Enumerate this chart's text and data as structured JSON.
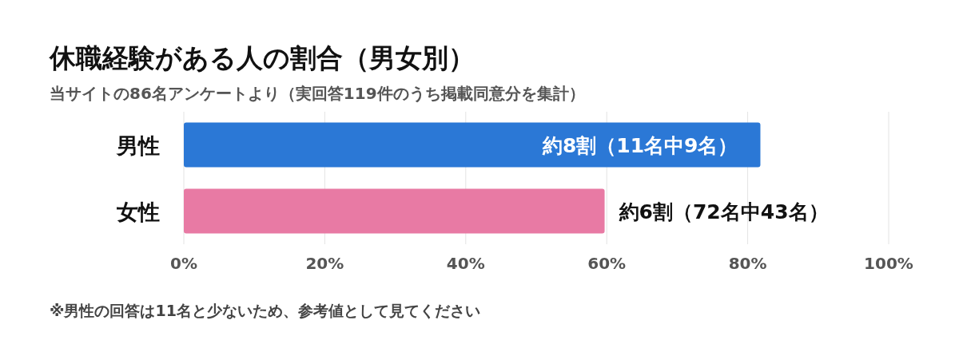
{
  "chart_data": {
    "type": "bar",
    "orientation": "horizontal",
    "title": "休職経験がある人の割合（男女別）",
    "subtitle": "当サイトの86名アンケートより（実回答119件のうち掲載同意分を集計）",
    "categories": [
      "男性",
      "女性"
    ],
    "values": [
      81.8,
      59.7
    ],
    "colors": [
      "#2b78d6",
      "#e87aa4"
    ],
    "value_labels": [
      "約8割（11名中9名）",
      "約6割（72名中43名）"
    ],
    "xlim": [
      0,
      100
    ],
    "xticks": [
      {
        "value": 0,
        "label": "0%"
      },
      {
        "value": 20,
        "label": "20%"
      },
      {
        "value": 40,
        "label": "40%"
      },
      {
        "value": 60,
        "label": "60%"
      },
      {
        "value": 80,
        "label": "80%"
      },
      {
        "value": 100,
        "label": "100%"
      }
    ],
    "grid": "x",
    "annotations": [
      "※男性の回答は11名と少ないため、参考値として見てください"
    ]
  }
}
